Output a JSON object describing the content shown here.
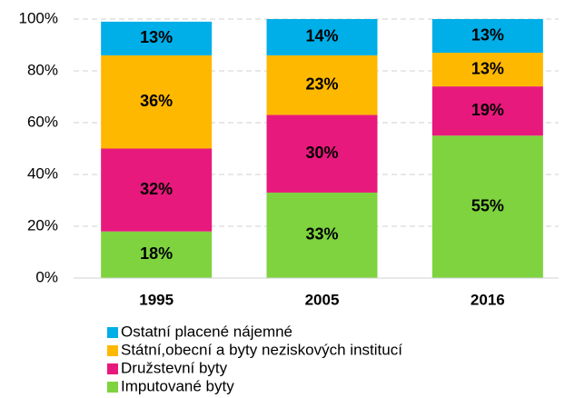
{
  "chart_data": {
    "type": "stacked_bar",
    "categories": [
      "1995",
      "2005",
      "2016"
    ],
    "series": [
      {
        "name": "Imputované byty",
        "color": "#7ed33f",
        "values": [
          18,
          33,
          55
        ],
        "value_labels": [
          "18%",
          "33%",
          "55%"
        ]
      },
      {
        "name": "Družstevní byty",
        "color": "#e8197c",
        "values": [
          32,
          30,
          19
        ],
        "value_labels": [
          "32%",
          "30%",
          "19%"
        ]
      },
      {
        "name": "Státní,obecní a byty neziskových institucí",
        "color": "#ffb800",
        "values": [
          36,
          23,
          13
        ],
        "value_labels": [
          "36%",
          "23%",
          "13%"
        ]
      },
      {
        "name": "Ostatní placené nájemné",
        "color": "#00aee8",
        "values": [
          13,
          14,
          13
        ],
        "value_labels": [
          "13%",
          "14%",
          "13%"
        ]
      }
    ],
    "ylim": [
      0,
      100
    ],
    "yticks": [
      {
        "value": 0,
        "label": "0%"
      },
      {
        "value": 20,
        "label": "20%"
      },
      {
        "value": 40,
        "label": "40%"
      },
      {
        "value": 60,
        "label": "60%"
      },
      {
        "value": 80,
        "label": "80%"
      },
      {
        "value": 100,
        "label": "100%"
      }
    ],
    "grid": true,
    "legend": "bottom"
  }
}
